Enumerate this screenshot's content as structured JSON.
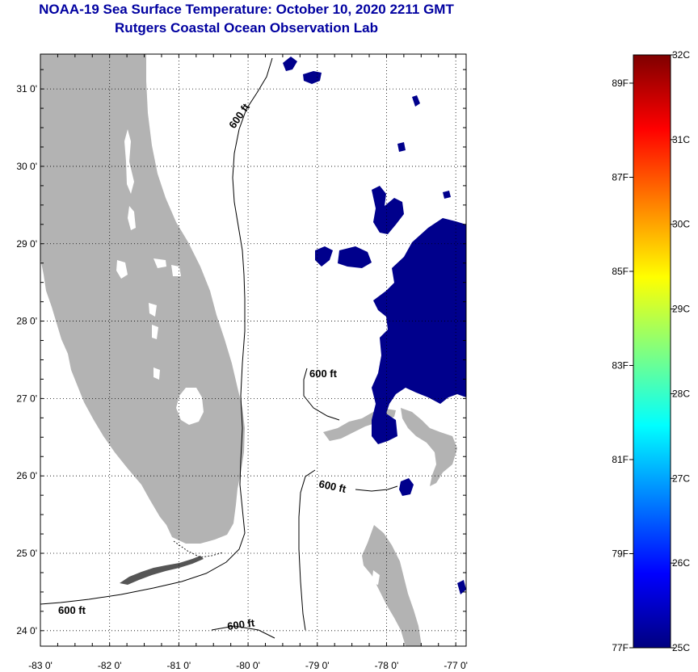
{
  "header": {
    "title": "NOAA-19 Sea Surface Temperature:  October 10, 2020 2211 GMT",
    "subtitle": "Rutgers Coastal Ocean Observation Lab"
  },
  "map": {
    "lon_range": [
      -83,
      -76.85
    ],
    "lat_range": [
      23.8,
      31.45
    ],
    "lon_ticks": [
      {
        "value": -83,
        "label": "-83 0'"
      },
      {
        "value": -82,
        "label": "-82 0'"
      },
      {
        "value": -81,
        "label": "-81 0'"
      },
      {
        "value": -80,
        "label": "-80 0'"
      },
      {
        "value": -79,
        "label": "-79 0'"
      },
      {
        "value": -78,
        "label": "-78 0'"
      },
      {
        "value": -77,
        "label": "-77 0'"
      }
    ],
    "lat_ticks": [
      {
        "value": 31,
        "label": "31 0'"
      },
      {
        "value": 30,
        "label": "30 0'"
      },
      {
        "value": 29,
        "label": "29 0'"
      },
      {
        "value": 28,
        "label": "28 0'"
      },
      {
        "value": 27,
        "label": "27 0'"
      },
      {
        "value": 26,
        "label": "26 0'"
      },
      {
        "value": 25,
        "label": "25 0'"
      },
      {
        "value": 24,
        "label": "24 0'"
      }
    ],
    "contour_labels": [
      "600 ft",
      "600 ft",
      "600 ft",
      "600 ft",
      "600 ft"
    ],
    "colors": {
      "land": "#b3b3b3",
      "sst_cold": "#00008c",
      "contour": "#000000",
      "grid": "#000000"
    }
  },
  "colorbar": {
    "range_c": [
      25,
      32
    ],
    "celsius_labels": [
      {
        "value": 32,
        "label": "32C"
      },
      {
        "value": 31,
        "label": "31C"
      },
      {
        "value": 30,
        "label": "30C"
      },
      {
        "value": 29,
        "label": "29C"
      },
      {
        "value": 28,
        "label": "28C"
      },
      {
        "value": 27,
        "label": "27C"
      },
      {
        "value": 26,
        "label": "26C"
      },
      {
        "value": 25,
        "label": "25C"
      }
    ],
    "fahrenheit_labels": [
      {
        "value": 89,
        "label": "89F"
      },
      {
        "value": 87,
        "label": "87F"
      },
      {
        "value": 85,
        "label": "85F"
      },
      {
        "value": 83,
        "label": "83F"
      },
      {
        "value": 81,
        "label": "81F"
      },
      {
        "value": 79,
        "label": "79F"
      },
      {
        "value": 77,
        "label": "77F"
      }
    ],
    "gradient_colors": [
      "#00007f",
      "#0000ff",
      "#0080ff",
      "#00ffff",
      "#80ff80",
      "#ffff00",
      "#ff8000",
      "#ff0000",
      "#7f0000"
    ]
  }
}
